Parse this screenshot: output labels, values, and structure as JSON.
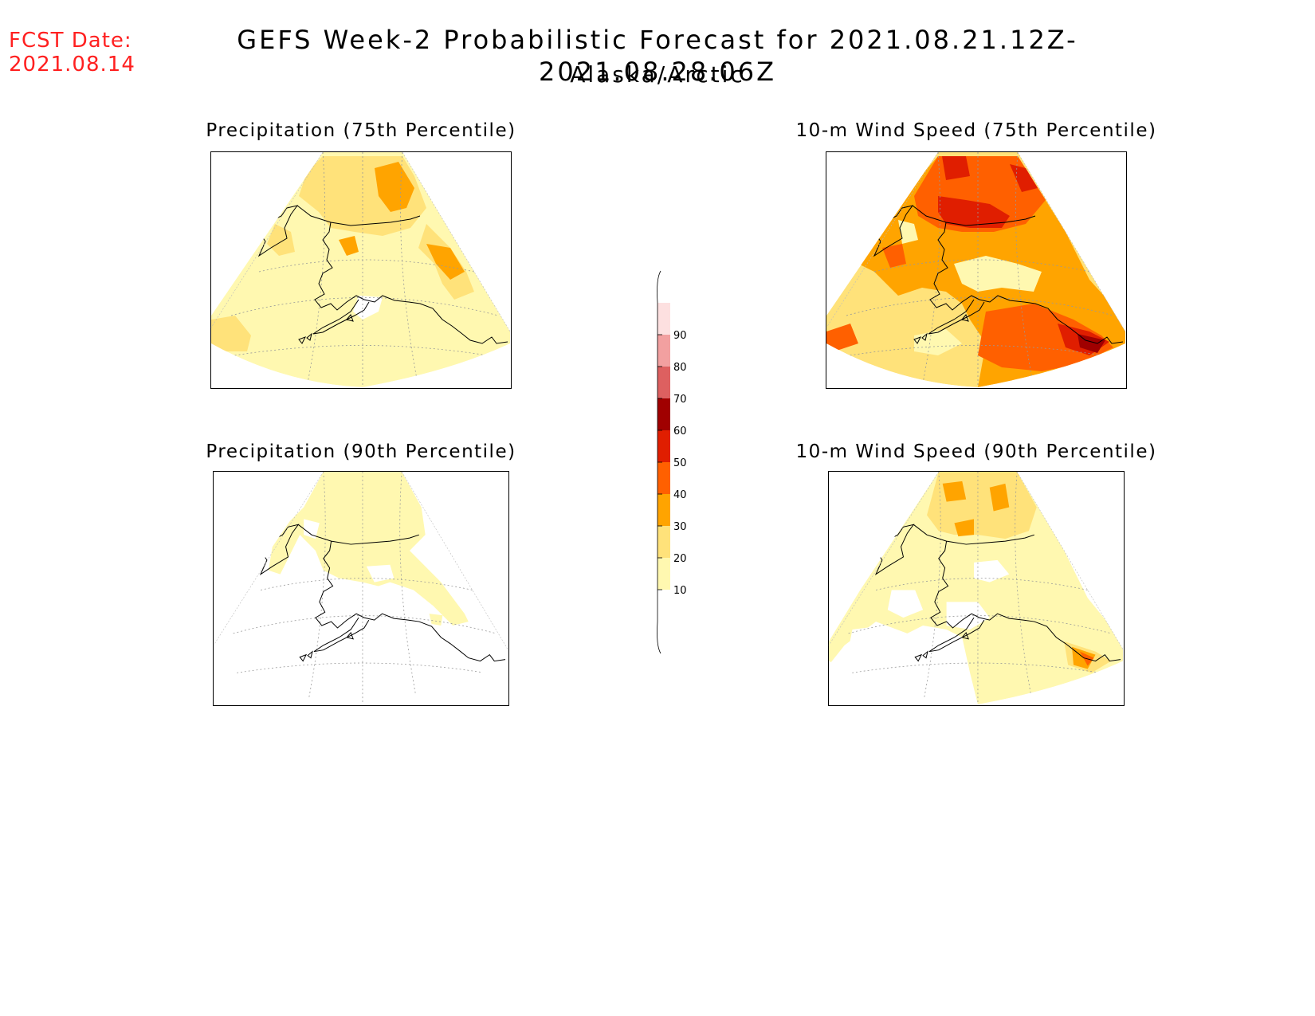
{
  "header": {
    "fcst_label": "FCST Date:",
    "fcst_date": "2021.08.14",
    "title": "GEFS Week-2 Probabilistic Forecast for 2021.08.21.12Z-2021.08.28.06Z",
    "subtitle": "Alaska/Arctic"
  },
  "panels": [
    {
      "id": "precip75",
      "title": "Precipitation (75th Percentile)",
      "scheme": "low"
    },
    {
      "id": "wind75",
      "title": "10-m Wind Speed (75th Percentile)",
      "scheme": "high"
    },
    {
      "id": "precip90",
      "title": "Precipitation (90th Percentile)",
      "scheme": "sparse"
    },
    {
      "id": "wind90",
      "title": "10-m Wind Speed (90th Percentile)",
      "scheme": "mid"
    }
  ],
  "colorbar": {
    "levels": [
      10,
      20,
      30,
      40,
      50,
      60,
      70,
      80,
      90
    ],
    "colors": [
      "#ffffff",
      "#fff8b0",
      "#ffe27a",
      "#ffa400",
      "#ff6000",
      "#e01e00",
      "#a00000",
      "#dd6060",
      "#f2a0a0",
      "#fde0e0"
    ]
  }
}
